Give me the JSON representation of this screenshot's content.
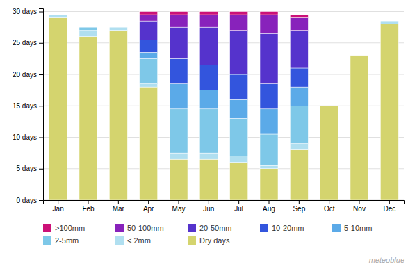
{
  "chart_data": {
    "type": "bar",
    "stacked": true,
    "categories": [
      "Jan",
      "Feb",
      "Mar",
      "Apr",
      "May",
      "Jun",
      "Jul",
      "Aug",
      "Sep",
      "Oct",
      "Nov",
      "Dec"
    ],
    "series": [
      {
        "name": "Dry days",
        "color": "#d4d46e",
        "values": [
          29,
          26,
          27,
          18,
          6.5,
          6.5,
          6,
          5,
          8,
          15,
          23,
          28
        ]
      },
      {
        "name": "< 2mm",
        "color": "#b0dff0",
        "values": [
          0.5,
          1,
          0.5,
          0.5,
          1,
          1,
          1,
          0.5,
          1,
          0,
          0,
          0.5
        ]
      },
      {
        "name": "2-5mm",
        "color": "#7ec8e8",
        "values": [
          0,
          0.5,
          0,
          4,
          7,
          7,
          6,
          5,
          6,
          0,
          0,
          0
        ]
      },
      {
        "name": "5-10mm",
        "color": "#5baae8",
        "values": [
          0,
          0,
          0,
          1,
          4,
          3,
          3,
          4,
          3,
          0,
          0,
          0
        ]
      },
      {
        "name": "10-20mm",
        "color": "#3355dd",
        "values": [
          0,
          0,
          0,
          2,
          4,
          4,
          4,
          4,
          3,
          0,
          0,
          0
        ]
      },
      {
        "name": "20-50mm",
        "color": "#5533cc",
        "values": [
          0,
          0,
          0,
          3,
          5,
          6,
          7,
          8,
          6,
          0,
          0,
          0
        ]
      },
      {
        "name": "50-100mm",
        "color": "#8822bb",
        "values": [
          0,
          0,
          0,
          1,
          2,
          2,
          2.5,
          3,
          2,
          0,
          0,
          0
        ]
      },
      {
        "name": ">100mm",
        "color": "#cc1177",
        "values": [
          0,
          0,
          0,
          0.5,
          0.5,
          0.5,
          0.5,
          0.5,
          0.5,
          0,
          0,
          0
        ]
      }
    ],
    "ylim": [
      0,
      30.5
    ],
    "yticks": [
      {
        "value": 0,
        "label": "0 days"
      },
      {
        "value": 5,
        "label": "5 days"
      },
      {
        "value": 10,
        "label": "10 days"
      },
      {
        "value": 15,
        "label": "15 days"
      },
      {
        "value": 20,
        "label": "20 days"
      },
      {
        "value": 25,
        "label": "25 days"
      },
      {
        "value": 30,
        "label": "30 days"
      }
    ],
    "grid": true,
    "legend": "bottom",
    "annotations": [
      "meteoblue"
    ]
  }
}
